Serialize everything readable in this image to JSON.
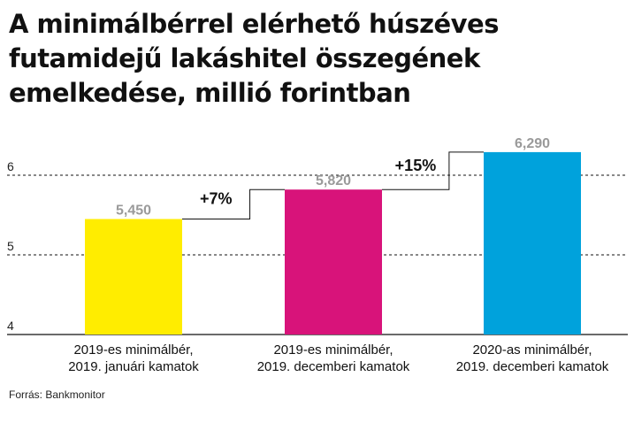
{
  "title": "A minimálbérrel elérhető húszéves futamidejű lakáshitel összegének emelkedése, millió forintban",
  "source": "Forrás: Bankmonitor",
  "chart_data": {
    "type": "bar",
    "title": "A minimálbérrel elérhető húszéves futamidejű lakáshitel összegének emelkedése, millió forintban",
    "xlabel": "",
    "ylabel": "",
    "ylim": [
      4,
      6.5
    ],
    "yticks": [
      4,
      5,
      6
    ],
    "grid": true,
    "categories": [
      [
        "2019-es minimálbér,",
        "2019. januári kamatok"
      ],
      [
        "2019-es minimálbér,",
        "2019. decemberi kamatok"
      ],
      [
        "2020-as minimálbér,",
        "2019. decemberi kamatok"
      ]
    ],
    "values": [
      5.45,
      5.82,
      6.29
    ],
    "value_labels": [
      "5,450",
      "5,820",
      "6,290"
    ],
    "colors": [
      "#ffed00",
      "#d8137a",
      "#00a2dc"
    ],
    "changes": [
      "+7%",
      "+15%"
    ]
  }
}
